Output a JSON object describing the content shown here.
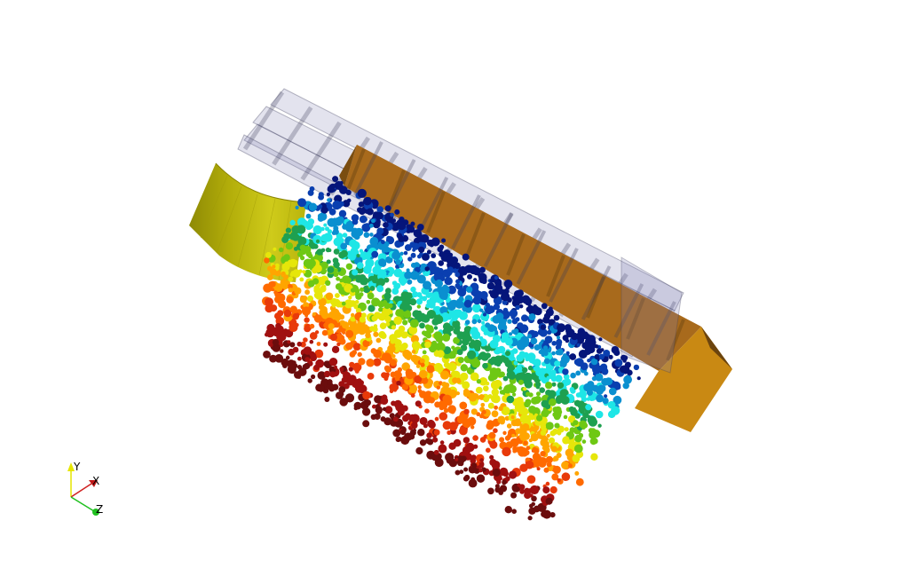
{
  "viewport": {
    "background": "#ffffff"
  },
  "scene": {
    "colors": {
      "wireframe": "#7f7fb2",
      "wireframe_edge": "#3a3a5a",
      "box_top": "#a8661a",
      "box_front": "#cc8a16",
      "box_side": "#7a4d10",
      "curved_surface_light": "#c8c413",
      "curved_surface_dark": "#9a9406",
      "point_cloud_colormap": [
        "#05157a",
        "#0a3fb0",
        "#0a8fd0",
        "#1ee6e6",
        "#1ea050",
        "#6ec814",
        "#e6e60a",
        "#ffa500",
        "#ff6a00",
        "#e83a0a",
        "#a01010",
        "#6b0d0d"
      ]
    }
  },
  "orientation_axes": {
    "icon": "orientation-axes-icon",
    "labels": {
      "y": "Y",
      "x": "X",
      "z": "Z"
    },
    "colors": {
      "y": "#e6e600",
      "x": "#d02020",
      "z": "#20c020"
    }
  }
}
